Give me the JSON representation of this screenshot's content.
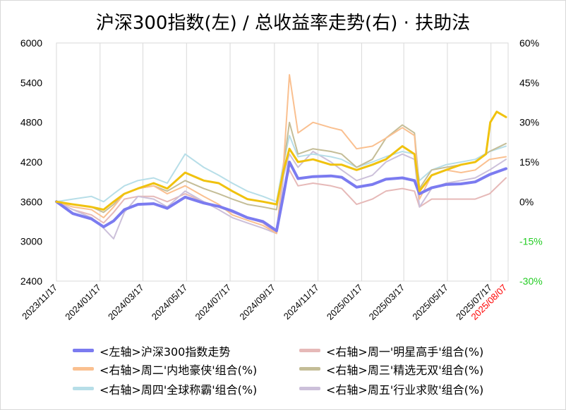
{
  "chart_data": {
    "type": "line",
    "title": "沪深300指数(左)  /  总收益率走势(右) · 扶助法",
    "y_left": {
      "min": 2400,
      "max": 6000,
      "ticks": [
        "6000",
        "5400",
        "4800",
        "4200",
        "3600",
        "3000",
        "2400"
      ],
      "values": [
        6000,
        5400,
        4800,
        4200,
        3600,
        3000,
        2400
      ]
    },
    "y_right": {
      "min": -30,
      "max": 60,
      "ticks": [
        "60%",
        "45%",
        "30%",
        "15%",
        "0%",
        "-15%",
        "-30%"
      ],
      "values": [
        60,
        45,
        30,
        15,
        0,
        -15,
        -30
      ],
      "negative_color": "#22cc22"
    },
    "x_ticks": [
      "2023/11/17",
      "2024/01/17",
      "2024/03/17",
      "2024/05/17",
      "2024/07/17",
      "2024/09/17",
      "2024/11/17",
      "2025/01/17",
      "2025/03/17",
      "2025/05/17",
      "2025/07/17",
      "2025/08/07"
    ],
    "x_tick_colors": [
      "#000000",
      "#000000",
      "#000000",
      "#000000",
      "#000000",
      "#000000",
      "#000000",
      "#000000",
      "#000000",
      "#000000",
      "#000000",
      "#ff0000"
    ],
    "grid": "vertical",
    "legend_position": "bottom",
    "series": [
      {
        "name": "<左轴>沪深300指数走势",
        "axis": "left",
        "color": "#7b7bf0",
        "width": 4,
        "x": [
          "2023/11/17",
          "2023/12/10",
          "2024/01/05",
          "2024/01/22",
          "2024/02/05",
          "2024/02/20",
          "2024/03/10",
          "2024/04/01",
          "2024/04/20",
          "2024/05/15",
          "2024/06/10",
          "2024/07/01",
          "2024/07/20",
          "2024/08/10",
          "2024/09/01",
          "2024/09/20",
          "2024/09/30",
          "2024/10/08",
          "2024/10/20",
          "2024/11/10",
          "2024/12/05",
          "2024/12/20",
          "2025/01/10",
          "2025/02/01",
          "2025/02/20",
          "2025/03/15",
          "2025/04/01",
          "2025/04/08",
          "2025/04/25",
          "2025/05/15",
          "2025/06/05",
          "2025/06/25",
          "2025/07/15",
          "2025/08/07"
        ],
        "values": [
          3600,
          3420,
          3340,
          3220,
          3310,
          3480,
          3560,
          3570,
          3500,
          3670,
          3580,
          3530,
          3460,
          3360,
          3300,
          3160,
          3720,
          4200,
          3950,
          3980,
          3990,
          3970,
          3820,
          3860,
          3940,
          3960,
          3920,
          3720,
          3810,
          3860,
          3870,
          3900,
          4010,
          4100
        ]
      },
      {
        "name": "<右轴>周一'明星高手'组合(%)",
        "axis": "right",
        "color": "#e6b9b8",
        "width": 2,
        "x": [
          "2023/11/17",
          "2023/12/10",
          "2024/01/05",
          "2024/01/22",
          "2024/02/05",
          "2024/02/20",
          "2024/03/10",
          "2024/04/01",
          "2024/04/20",
          "2024/05/15",
          "2024/06/10",
          "2024/07/01",
          "2024/07/20",
          "2024/08/10",
          "2024/09/01",
          "2024/09/20",
          "2024/09/30",
          "2024/10/08",
          "2024/10/20",
          "2024/11/10",
          "2024/12/05",
          "2024/12/20",
          "2025/01/10",
          "2025/02/01",
          "2025/02/20",
          "2025/03/15",
          "2025/04/01",
          "2025/04/08",
          "2025/04/25",
          "2025/05/15",
          "2025/06/05",
          "2025/06/25",
          "2025/07/15",
          "2025/08/07"
        ],
        "values": [
          0,
          -3,
          -5,
          -8,
          -4,
          1,
          2,
          2,
          0,
          3,
          0,
          -2,
          -4,
          -6,
          -8,
          -12,
          5,
          12,
          6,
          7,
          6,
          5,
          -1,
          1,
          4,
          5,
          4,
          -2,
          1,
          1,
          1,
          1,
          3,
          9
        ]
      },
      {
        "name": "<右轴>周二'内地豪侠'组合(%)",
        "axis": "right",
        "color": "#fac090",
        "width": 2,
        "x": [
          "2023/11/17",
          "2023/12/10",
          "2024/01/05",
          "2024/01/22",
          "2024/02/05",
          "2024/02/20",
          "2024/03/10",
          "2024/04/01",
          "2024/04/20",
          "2024/05/15",
          "2024/06/10",
          "2024/07/01",
          "2024/07/20",
          "2024/08/10",
          "2024/09/01",
          "2024/09/20",
          "2024/09/30",
          "2024/10/08",
          "2024/10/20",
          "2024/11/10",
          "2024/12/05",
          "2024/12/20",
          "2025/01/10",
          "2025/02/01",
          "2025/02/20",
          "2025/03/15",
          "2025/04/01",
          "2025/04/08",
          "2025/04/25",
          "2025/05/15",
          "2025/06/05",
          "2025/06/25",
          "2025/07/15",
          "2025/08/07"
        ],
        "values": [
          0,
          -2,
          -3,
          -6,
          -2,
          3,
          5,
          6,
          3,
          6,
          2,
          -1,
          -5,
          -7,
          -9,
          -12,
          15,
          48,
          26,
          30,
          28,
          27,
          20,
          21,
          24,
          28,
          25,
          1,
          10,
          12,
          11,
          12,
          16,
          17
        ]
      },
      {
        "name": "<右轴>周三'精选无双'组合(%)",
        "axis": "right",
        "color": "#c4bd97",
        "width": 2,
        "x": [
          "2023/11/17",
          "2023/12/10",
          "2024/01/05",
          "2024/01/22",
          "2024/02/05",
          "2024/02/20",
          "2024/03/10",
          "2024/04/01",
          "2024/04/20",
          "2024/05/15",
          "2024/06/10",
          "2024/07/01",
          "2024/07/20",
          "2024/08/10",
          "2024/09/01",
          "2024/09/20",
          "2024/09/30",
          "2024/10/08",
          "2024/10/20",
          "2024/11/10",
          "2024/12/05",
          "2024/12/20",
          "2025/01/10",
          "2025/02/01",
          "2025/02/20",
          "2025/03/15",
          "2025/04/01",
          "2025/04/08",
          "2025/04/25",
          "2025/05/15",
          "2025/06/05",
          "2025/06/25",
          "2025/07/15",
          "2025/08/07"
        ],
        "values": [
          0,
          -1,
          -2,
          -4,
          -1,
          3,
          5,
          6,
          4,
          8,
          5,
          3,
          1,
          -1,
          -2,
          -3,
          14,
          30,
          18,
          20,
          19,
          18,
          13,
          16,
          24,
          29,
          26,
          5,
          12,
          13,
          14,
          15,
          19,
          22
        ]
      },
      {
        "name": "<右轴>周四'全球称霸'组合(%)",
        "axis": "right",
        "color": "#b7dee8",
        "width": 2,
        "x": [
          "2023/11/17",
          "2023/12/10",
          "2024/01/05",
          "2024/01/22",
          "2024/02/05",
          "2024/02/20",
          "2024/03/10",
          "2024/04/01",
          "2024/04/20",
          "2024/05/15",
          "2024/06/10",
          "2024/07/01",
          "2024/07/20",
          "2024/08/10",
          "2024/09/01",
          "2024/09/20",
          "2024/09/30",
          "2024/10/08",
          "2024/10/20",
          "2024/11/10",
          "2024/12/05",
          "2024/12/20",
          "2025/01/10",
          "2025/02/01",
          "2025/02/20",
          "2025/03/15",
          "2025/04/01",
          "2025/04/08",
          "2025/04/25",
          "2025/05/15",
          "2025/06/05",
          "2025/06/25",
          "2025/07/15",
          "2025/08/07"
        ],
        "values": [
          0,
          1,
          2,
          0,
          3,
          6,
          8,
          9,
          7,
          18,
          13,
          10,
          7,
          4,
          2,
          0,
          15,
          25,
          17,
          18,
          17,
          16,
          13,
          15,
          17,
          19,
          18,
          8,
          12,
          14,
          15,
          16,
          19,
          21
        ]
      },
      {
        "name": "<右轴>周五'行业求败'组合(%)",
        "axis": "right",
        "color": "#ccc0da",
        "width": 2,
        "x": [
          "2023/11/17",
          "2023/12/10",
          "2024/01/05",
          "2024/01/22",
          "2024/02/05",
          "2024/02/20",
          "2024/03/10",
          "2024/04/01",
          "2024/04/20",
          "2024/05/15",
          "2024/06/10",
          "2024/07/01",
          "2024/07/20",
          "2024/08/10",
          "2024/09/01",
          "2024/09/20",
          "2024/09/30",
          "2024/10/08",
          "2024/10/20",
          "2024/11/10",
          "2024/12/05",
          "2024/12/20",
          "2025/01/10",
          "2025/02/01",
          "2025/02/20",
          "2025/03/15",
          "2025/04/01",
          "2025/04/08",
          "2025/04/25",
          "2025/05/15",
          "2025/06/05",
          "2025/06/25",
          "2025/07/15",
          "2025/08/07"
        ],
        "values": [
          0,
          -3,
          -6,
          -10,
          -14,
          -4,
          2,
          1,
          -2,
          4,
          0,
          -3,
          -6,
          -8,
          -10,
          -12,
          10,
          18,
          13,
          19,
          15,
          12,
          8,
          10,
          15,
          18,
          16,
          -2,
          5,
          7,
          8,
          9,
          12,
          16
        ]
      },
      {
        "name": "",
        "axis": "right",
        "color": "#f0c20e",
        "width": 3,
        "x": [
          "2023/11/17",
          "2023/12/10",
          "2024/01/05",
          "2024/01/22",
          "2024/02/05",
          "2024/02/20",
          "2024/03/10",
          "2024/04/01",
          "2024/04/20",
          "2024/05/15",
          "2024/06/10",
          "2024/07/01",
          "2024/07/20",
          "2024/08/10",
          "2024/09/01",
          "2024/09/20",
          "2024/09/30",
          "2024/10/08",
          "2024/10/20",
          "2024/11/10",
          "2024/12/05",
          "2024/12/20",
          "2025/01/10",
          "2025/02/01",
          "2025/02/20",
          "2025/03/15",
          "2025/04/01",
          "2025/04/08",
          "2025/04/25",
          "2025/05/15",
          "2025/06/05",
          "2025/06/25",
          "2025/07/10",
          "2025/07/16",
          "2025/07/25",
          "2025/08/07"
        ],
        "values": [
          0,
          -1,
          -2,
          -3,
          0,
          3,
          5,
          7,
          5,
          11,
          8,
          7,
          4,
          1,
          0,
          -1,
          12,
          20,
          15,
          16,
          14,
          14,
          12,
          14,
          16,
          21,
          18,
          4,
          10,
          12,
          14,
          15,
          18,
          30,
          34,
          32
        ]
      }
    ]
  }
}
